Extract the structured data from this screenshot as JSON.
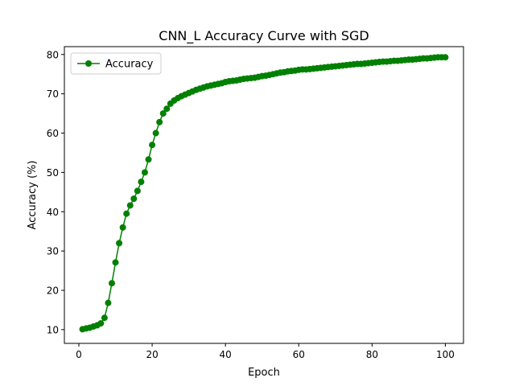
{
  "chart_data": {
    "type": "line",
    "title": "CNN_L Accuracy Curve with SGD",
    "xlabel": "Epoch",
    "ylabel": "Accuracy (%)",
    "xlim": [
      -3.95,
      104.95
    ],
    "ylim": [
      6.5,
      82.0
    ],
    "xticks": [
      0,
      20,
      40,
      60,
      80,
      100
    ],
    "yticks": [
      10,
      20,
      30,
      40,
      50,
      60,
      70,
      80
    ],
    "grid": false,
    "legend": {
      "position": "top-left",
      "entries": [
        "Accuracy"
      ]
    },
    "series": [
      {
        "name": "Accuracy",
        "color": "#008000",
        "marker": "circle",
        "x": [
          1,
          2,
          3,
          4,
          5,
          6,
          7,
          8,
          9,
          10,
          11,
          12,
          13,
          14,
          15,
          16,
          17,
          18,
          19,
          20,
          21,
          22,
          23,
          24,
          25,
          26,
          27,
          28,
          29,
          30,
          31,
          32,
          33,
          34,
          35,
          36,
          37,
          38,
          39,
          40,
          41,
          42,
          43,
          44,
          45,
          46,
          47,
          48,
          49,
          50,
          51,
          52,
          53,
          54,
          55,
          56,
          57,
          58,
          59,
          60,
          61,
          62,
          63,
          64,
          65,
          66,
          67,
          68,
          69,
          70,
          71,
          72,
          73,
          74,
          75,
          76,
          77,
          78,
          79,
          80,
          81,
          82,
          83,
          84,
          85,
          86,
          87,
          88,
          89,
          90,
          91,
          92,
          93,
          94,
          95,
          96,
          97,
          98,
          99,
          100
        ],
        "values": [
          10.1,
          10.3,
          10.5,
          10.8,
          11.1,
          11.6,
          13.0,
          16.8,
          21.8,
          27.1,
          32.0,
          36.0,
          39.5,
          41.6,
          43.3,
          45.3,
          47.6,
          50.0,
          53.3,
          57.0,
          60.0,
          62.8,
          65.0,
          66.2,
          67.5,
          68.3,
          68.9,
          69.4,
          69.8,
          70.2,
          70.6,
          71.0,
          71.3,
          71.6,
          71.9,
          72.1,
          72.3,
          72.5,
          72.7,
          73.0,
          73.2,
          73.3,
          73.4,
          73.6,
          73.8,
          73.9,
          74.0,
          74.1,
          74.3,
          74.5,
          74.6,
          74.8,
          75.0,
          75.2,
          75.4,
          75.5,
          75.7,
          75.8,
          75.9,
          76.1,
          76.2,
          76.2,
          76.3,
          76.4,
          76.5,
          76.6,
          76.7,
          76.8,
          76.9,
          77.0,
          77.1,
          77.2,
          77.3,
          77.4,
          77.5,
          77.6,
          77.6,
          77.7,
          77.8,
          77.9,
          78.0,
          78.1,
          78.2,
          78.2,
          78.3,
          78.4,
          78.4,
          78.5,
          78.6,
          78.7,
          78.7,
          78.8,
          78.9,
          79.0,
          79.0,
          79.1,
          79.2,
          79.3,
          79.3,
          79.3
        ]
      }
    ]
  }
}
